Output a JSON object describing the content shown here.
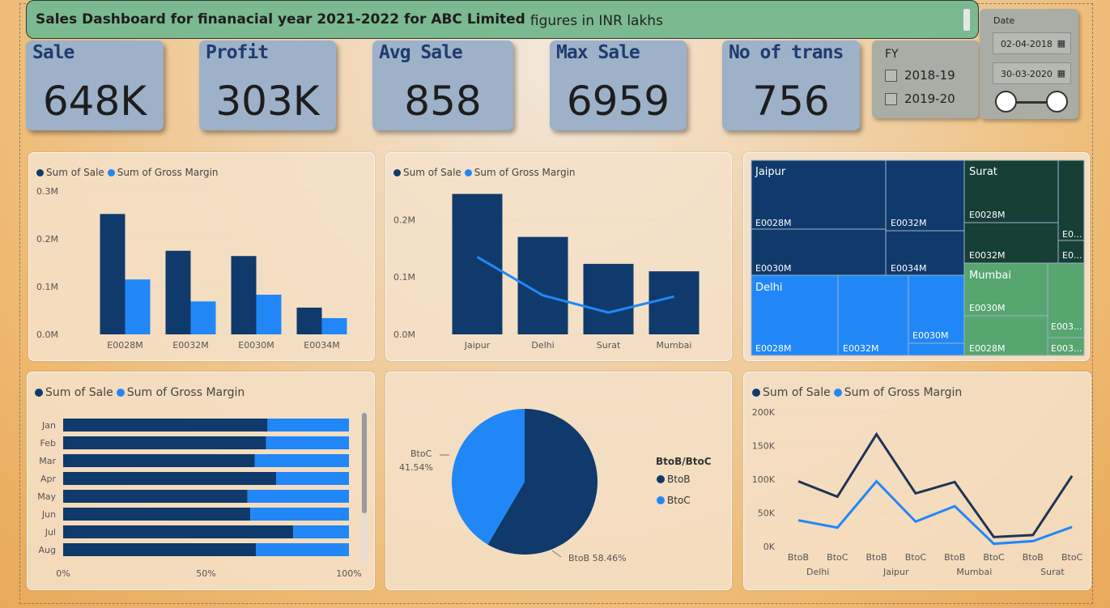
{
  "header": {
    "title": "Sales Dashboard for finanacial year 2021-2022 for ABC Limited",
    "subtitle": "figures in INR lakhs"
  },
  "kpis": [
    {
      "label": "Sale",
      "value": "648K"
    },
    {
      "label": "Profit",
      "value": "303K"
    },
    {
      "label": "Avg Sale",
      "value": "858"
    },
    {
      "label": "Max Sale",
      "value": "6959"
    },
    {
      "label": "No of trans",
      "value": "756"
    }
  ],
  "fy_slicer": {
    "title": "FY",
    "options": [
      "2018-19",
      "2019-20"
    ]
  },
  "date_slicer": {
    "title": "Date",
    "start": "02-04-2018",
    "end": "30-03-2020",
    "calendar_icon": "calendar-icon"
  },
  "colors": {
    "sale": "#0f3a6b",
    "gross_margin": "#2187f7",
    "treemap_jaipur": "#0f3a6b",
    "treemap_delhi": "#2187f7",
    "treemap_surat": "#163f36",
    "treemap_mumbai": "#57a56f"
  },
  "legend": {
    "sale": "Sum of Sale",
    "gross_margin": "Sum of Gross Margin"
  },
  "chart_data": [
    {
      "type": "bar",
      "categories": [
        "E0028M",
        "E0032M",
        "E0030M",
        "E0034M"
      ],
      "series": [
        {
          "name": "Sum of Sale",
          "values": [
            0.252,
            0.175,
            0.164,
            0.056
          ]
        },
        {
          "name": "Sum of Gross Margin",
          "values": [
            0.115,
            0.069,
            0.083,
            0.034
          ]
        }
      ],
      "ylim": [
        0,
        0.3
      ],
      "yticks": [
        "0.0M",
        "0.1M",
        "0.2M",
        "0.3M"
      ]
    },
    {
      "type": "bar",
      "categories": [
        "Jaipur",
        "Delhi",
        "Surat",
        "Mumbai"
      ],
      "series": [
        {
          "name": "Sum of Sale",
          "values": [
            0.245,
            0.17,
            0.123,
            0.11
          ]
        },
        {
          "name": "Sum of Gross Margin",
          "values": [
            0.135,
            0.068,
            0.038,
            0.066
          ]
        }
      ],
      "ylim": [
        0,
        0.25
      ],
      "yticks": [
        "0.0M",
        "0.1M",
        "0.2M"
      ]
    },
    {
      "type": "treemap",
      "groups": [
        {
          "name": "Jaipur",
          "items": [
            "E0028M",
            "E0032M",
            "E0030M",
            "E0034M"
          ]
        },
        {
          "name": "Surat",
          "items": [
            "E0028M",
            "E0032M",
            "E0...",
            "E0..."
          ]
        },
        {
          "name": "Delhi",
          "items": [
            "E0028M",
            "E0032M",
            "E0030M"
          ]
        },
        {
          "name": "Mumbai",
          "items": [
            "E0030M",
            "E0028M",
            "E003...",
            "E003..."
          ]
        }
      ]
    },
    {
      "type": "bar",
      "orientation": "horizontal-stacked-100",
      "categories": [
        "Jan",
        "Feb",
        "Mar",
        "Apr",
        "May",
        "Jun",
        "Jul",
        "Aug"
      ],
      "series": [
        {
          "name": "Sum of Sale",
          "values": [
            71.5,
            71,
            67,
            74.5,
            64.5,
            65.5,
            80.5,
            67.5
          ]
        },
        {
          "name": "Sum of Gross Margin",
          "values": [
            28.5,
            29,
            33,
            25.5,
            35.5,
            34.5,
            19.5,
            32.5
          ]
        }
      ],
      "xticks": [
        "0%",
        "50%",
        "100%"
      ]
    },
    {
      "type": "pie",
      "legend_title": "BtoB/BtoC",
      "slices": [
        {
          "name": "BtoB",
          "value": 58.46,
          "label": "BtoB 58.46%"
        },
        {
          "name": "BtoC",
          "value": 41.54,
          "label": "41.54%"
        }
      ]
    },
    {
      "type": "line",
      "x": [
        "BtoB",
        "BtoC",
        "BtoB",
        "BtoC",
        "BtoB",
        "BtoC",
        "BtoB",
        "BtoC"
      ],
      "groups": [
        "Delhi",
        "Jaipur",
        "Mumbai",
        "Surat"
      ],
      "series": [
        {
          "name": "Sum of Sale",
          "values": [
            97,
            74,
            167,
            79,
            96,
            14,
            17,
            105
          ]
        },
        {
          "name": "Sum of Gross Margin",
          "values": [
            39,
            28,
            97,
            37,
            60,
            4,
            8,
            29
          ]
        }
      ],
      "ylim": [
        0,
        200
      ],
      "yticks": [
        "0K",
        "50K",
        "100K",
        "150K",
        "200K"
      ]
    }
  ]
}
